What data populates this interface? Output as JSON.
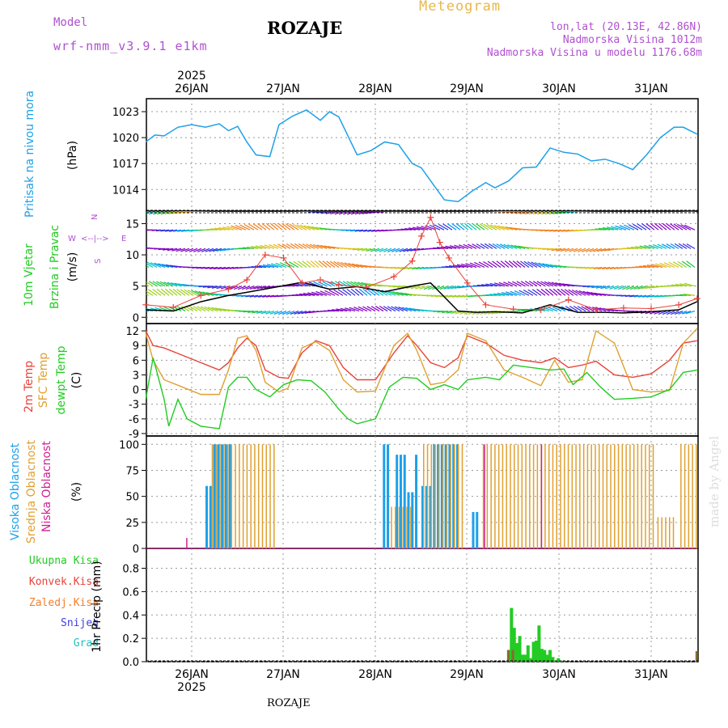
{
  "header": {
    "title": "ROZAJE",
    "meteogram": "Meteogram",
    "model_label": "Model",
    "model_value": "wrf-nmm_v3.9.1 e1km",
    "lonlat": "lon,lat (20.13E, 42.86N)",
    "elevation": "Nadmorska Visina 1012m",
    "model_elevation": "Nadmorska Visina u modelu 1176.68m"
  },
  "watermark": "made by Angel",
  "footer_location": "ROZAJE",
  "colors": {
    "pressure": "#1ea0e8",
    "temp2m": "#e8433a",
    "sfc": "#e0a030",
    "dewpt": "#22cc22",
    "high_cloud": "#1ea0e8",
    "mid_cloud": "#e0a030",
    "low_cloud": "#d02090",
    "total_precip": "#22cc22",
    "conv_precip": "#e8433a",
    "frozen_precip": "#f08030",
    "snow": "#4040e0",
    "hail": "#20c0c0",
    "compass": "#b050d0"
  },
  "axis": {
    "year": "2025",
    "days": [
      "26JAN",
      "27JAN",
      "28JAN",
      "29JAN",
      "30JAN",
      "31JAN"
    ]
  },
  "panel_labels": {
    "pressure": [
      "Pritisak na nivou mora",
      "(hPa)"
    ],
    "wind": [
      "10m Vjetar",
      "Brzina i Pravac",
      "(m/s)"
    ],
    "temp": [
      "2m Temp",
      "SFC Temp",
      "dewpt Temp",
      "(C)"
    ],
    "cloud": [
      "Visoka Oblacnost",
      "Srednja Oblacnost",
      "Niska Oblacnost",
      "(%)"
    ],
    "precip": [
      "Ukupna Kisa",
      "Konvek.Kisa",
      "Zaledj.Kisa",
      "Snijeg",
      "Grad",
      "1hr Precip (mm)"
    ],
    "compass": [
      "N",
      "S",
      "W",
      "E",
      "<--|-->"
    ]
  },
  "chart_data": [
    {
      "type": "line",
      "title": "",
      "ylabel": "Pritisak na nivou mora (hPa)",
      "y_ticks": [
        1014,
        1017,
        1020,
        1023
      ],
      "ylim": [
        1011.5,
        1024.5
      ],
      "x_range_days": [
        0.0,
        6.0
      ],
      "grid": true,
      "series": [
        {
          "name": "Pritisak na nivou mora",
          "x": [
            0.0,
            0.1,
            0.2,
            0.35,
            0.5,
            0.65,
            0.8,
            0.9,
            1.0,
            1.1,
            1.2,
            1.35,
            1.45,
            1.6,
            1.75,
            1.9,
            2.0,
            2.1,
            2.2,
            2.3,
            2.45,
            2.6,
            2.75,
            2.9,
            3.0,
            3.1,
            3.25,
            3.4,
            3.55,
            3.7,
            3.8,
            3.95,
            4.1,
            4.25,
            4.4,
            4.55,
            4.7,
            4.85,
            5.0,
            5.15,
            5.3,
            5.45,
            5.6,
            5.75,
            5.85,
            6.0
          ],
          "y": [
            1019.5,
            1020.3,
            1020.2,
            1021.2,
            1021.5,
            1021.2,
            1021.6,
            1020.8,
            1021.3,
            1019.5,
            1018.0,
            1017.8,
            1021.5,
            1022.5,
            1023.2,
            1022.0,
            1023.0,
            1022.4,
            1020.2,
            1018.0,
            1018.5,
            1019.5,
            1019.2,
            1017.0,
            1016.5,
            1015.0,
            1012.8,
            1012.6,
            1013.8,
            1014.8,
            1014.2,
            1015.0,
            1016.5,
            1016.6,
            1018.8,
            1018.3,
            1018.1,
            1017.3,
            1017.5,
            1017.0,
            1016.3,
            1018.0,
            1020.0,
            1021.2,
            1021.2,
            1020.4
          ]
        }
      ]
    },
    {
      "type": "line",
      "title": "",
      "ylabel": "10m Vjetar Brzina i Pravac (m/s)",
      "y_ticks": [
        0,
        5,
        10,
        15
      ],
      "ylim": [
        -1,
        17
      ],
      "x_range_days": [
        0.0,
        6.0
      ],
      "grid": true,
      "series": [
        {
          "name": "wind speed",
          "x": [
            0.0,
            0.3,
            0.6,
            0.9,
            1.1,
            1.4,
            1.7,
            2.0,
            2.3,
            2.6,
            2.9,
            3.1,
            3.2,
            3.4,
            3.6,
            3.8,
            4.1,
            4.4,
            4.7,
            5.0,
            5.2,
            5.5,
            5.8,
            6.0
          ],
          "y": [
            1.2,
            1.0,
            2.5,
            3.5,
            4.0,
            4.8,
            5.6,
            4.5,
            4.9,
            4.1,
            5.0,
            5.5,
            4.0,
            1.0,
            0.8,
            0.9,
            0.7,
            2.0,
            0.8,
            0.8,
            0.7,
            0.9,
            1.2,
            2.5
          ]
        },
        {
          "name": "wind gust",
          "x": [
            0.0,
            0.3,
            0.6,
            0.9,
            1.1,
            1.3,
            1.5,
            1.7,
            1.9,
            2.1,
            2.4,
            2.7,
            2.9,
            3.0,
            3.1,
            3.2,
            3.3,
            3.5,
            3.7,
            4.0,
            4.3,
            4.6,
            4.9,
            5.2,
            5.5,
            5.8,
            6.0
          ],
          "y": [
            2.0,
            1.6,
            3.5,
            4.5,
            6.0,
            10.0,
            9.5,
            5.5,
            6.0,
            5.2,
            4.8,
            6.5,
            9.0,
            13.0,
            16.0,
            12.0,
            9.5,
            5.5,
            2.0,
            1.3,
            1.2,
            2.8,
            1.2,
            1.5,
            1.4,
            2.0,
            3.0
          ]
        }
      ],
      "wind_barb_levels": [
        1,
        3.5,
        5,
        8,
        11,
        14,
        17
      ]
    },
    {
      "type": "line",
      "title": "",
      "ylabel": "Temp (C)",
      "y_ticks": [
        -9,
        -6,
        -3,
        0,
        3,
        6,
        9,
        12
      ],
      "ylim": [
        -9.5,
        13.5
      ],
      "x_range_days": [
        0.0,
        6.0
      ],
      "grid": true,
      "series": [
        {
          "name": "2m Temp",
          "x": [
            0.0,
            0.08,
            0.2,
            0.4,
            0.6,
            0.8,
            0.9,
            1.0,
            1.1,
            1.2,
            1.3,
            1.45,
            1.55,
            1.7,
            1.85,
            2.0,
            2.15,
            2.3,
            2.5,
            2.7,
            2.85,
            2.95,
            3.1,
            3.25,
            3.4,
            3.5,
            3.7,
            3.9,
            4.1,
            4.3,
            4.45,
            4.6,
            4.75,
            4.9,
            5.1,
            5.3,
            5.5,
            5.7,
            5.85,
            6.0
          ],
          "y": [
            12.0,
            9.0,
            8.5,
            7.0,
            5.5,
            4.0,
            5.5,
            8.5,
            10.5,
            9.0,
            4.0,
            2.5,
            2.3,
            7.5,
            10.0,
            9.0,
            4.5,
            2.0,
            2.0,
            7.5,
            11.0,
            9.0,
            5.5,
            4.5,
            6.5,
            11.0,
            9.5,
            7.0,
            6.0,
            5.5,
            6.5,
            4.5,
            5.0,
            5.8,
            3.0,
            2.5,
            3.2,
            6.0,
            9.5,
            10.0
          ]
        },
        {
          "name": "SFC Temp",
          "x": [
            0.0,
            0.08,
            0.2,
            0.4,
            0.6,
            0.8,
            0.9,
            1.0,
            1.1,
            1.2,
            1.3,
            1.45,
            1.55,
            1.7,
            1.85,
            2.0,
            2.15,
            2.3,
            2.5,
            2.7,
            2.85,
            2.95,
            3.1,
            3.25,
            3.4,
            3.5,
            3.7,
            3.9,
            4.1,
            4.3,
            4.45,
            4.6,
            4.75,
            4.9,
            5.1,
            5.3,
            5.5,
            5.7,
            5.85,
            6.0
          ],
          "y": [
            11.5,
            6.0,
            2.0,
            0.5,
            -1.0,
            -1.0,
            4.0,
            10.5,
            11.0,
            8.0,
            1.5,
            -0.5,
            0.3,
            8.5,
            9.8,
            8.0,
            2.0,
            -0.5,
            -0.3,
            9.0,
            11.5,
            8.0,
            1.0,
            1.5,
            4.0,
            11.5,
            10.0,
            4.0,
            2.5,
            0.8,
            6.0,
            1.5,
            2.0,
            12.0,
            9.5,
            0.0,
            -0.5,
            -0.2,
            9.5,
            12.5
          ]
        },
        {
          "name": "dewpt Temp",
          "x": [
            0.0,
            0.08,
            0.2,
            0.25,
            0.35,
            0.45,
            0.6,
            0.8,
            0.9,
            1.0,
            1.1,
            1.2,
            1.35,
            1.5,
            1.65,
            1.8,
            1.95,
            2.1,
            2.2,
            2.3,
            2.5,
            2.65,
            2.8,
            2.95,
            3.1,
            3.25,
            3.4,
            3.5,
            3.7,
            3.85,
            4.0,
            4.2,
            4.4,
            4.55,
            4.65,
            4.8,
            4.95,
            5.1,
            5.3,
            5.5,
            5.7,
            5.85,
            6.0
          ],
          "y": [
            -2.0,
            6.5,
            -2.0,
            -7.5,
            -2.0,
            -6.0,
            -7.5,
            -8.0,
            0.5,
            2.5,
            2.5,
            0.0,
            -1.5,
            1.0,
            2.0,
            1.8,
            -0.5,
            -4.0,
            -6.0,
            -7.0,
            -6.0,
            0.5,
            2.5,
            2.3,
            0.0,
            1.0,
            0.0,
            2.0,
            2.5,
            2.0,
            5.0,
            4.5,
            4.0,
            4.2,
            1.0,
            3.5,
            0.5,
            -2.0,
            -1.8,
            -1.5,
            0.0,
            3.5,
            4.0
          ]
        }
      ]
    },
    {
      "type": "bar",
      "title": "",
      "ylabel": "Oblacnost (%)",
      "y_ticks": [
        0,
        25,
        50,
        75,
        100
      ],
      "ylim": [
        0,
        108
      ],
      "x_range_days": [
        0.0,
        6.0
      ],
      "grid": true,
      "series": [
        {
          "name": "Visoka Oblacnost",
          "segments": [
            [
              0.65,
              0.92,
              100
            ],
            [
              2.58,
              2.66,
              100
            ],
            [
              2.72,
              2.95,
              90
            ],
            [
              3.0,
              3.4,
              100
            ],
            [
              3.55,
              3.62,
              35
            ]
          ]
        },
        {
          "name": "Srednja Oblacnost",
          "segments": [
            [
              0.7,
              1.4,
              100
            ],
            [
              2.65,
              2.9,
              40
            ],
            [
              3.0,
              3.45,
              100
            ],
            [
              3.65,
              5.5,
              100
            ],
            [
              5.55,
              5.72,
              30
            ],
            [
              5.8,
              6.0,
              100
            ]
          ]
        },
        {
          "name": "Niska Oblacnost",
          "segments": [
            [
              0.44,
              0.46,
              10
            ],
            [
              3.68,
              3.72,
              100
            ],
            [
              4.3,
              4.33,
              100
            ]
          ]
        }
      ]
    },
    {
      "type": "bar",
      "title": "",
      "ylabel": "1hr Precip (mm)",
      "y_ticks": [
        0.0,
        0.2,
        0.4,
        0.6,
        0.8
      ],
      "ylim": [
        0,
        0.97
      ],
      "x_range_days": [
        0.0,
        6.0
      ],
      "grid": true,
      "series": [
        {
          "name": "Ukupna Kisa",
          "x": [
            3.95,
            3.98,
            4.01,
            4.04,
            4.07,
            4.1,
            4.13,
            4.16,
            4.19,
            4.22,
            4.25,
            4.28,
            4.31,
            4.34,
            4.37,
            4.4,
            4.43,
            4.46,
            4.49,
            4.52
          ],
          "y": [
            0.1,
            0.46,
            0.29,
            0.16,
            0.22,
            0.06,
            0.06,
            0.14,
            0.03,
            0.17,
            0.18,
            0.31,
            0.11,
            0.1,
            0.06,
            0.1,
            0.04,
            0.01,
            0.03,
            0.01
          ]
        },
        {
          "name": "Zaledj.Kisa",
          "x": [
            3.95,
            4.0,
            6.0
          ],
          "y": [
            0.1,
            0.1,
            0.09
          ]
        }
      ]
    }
  ]
}
